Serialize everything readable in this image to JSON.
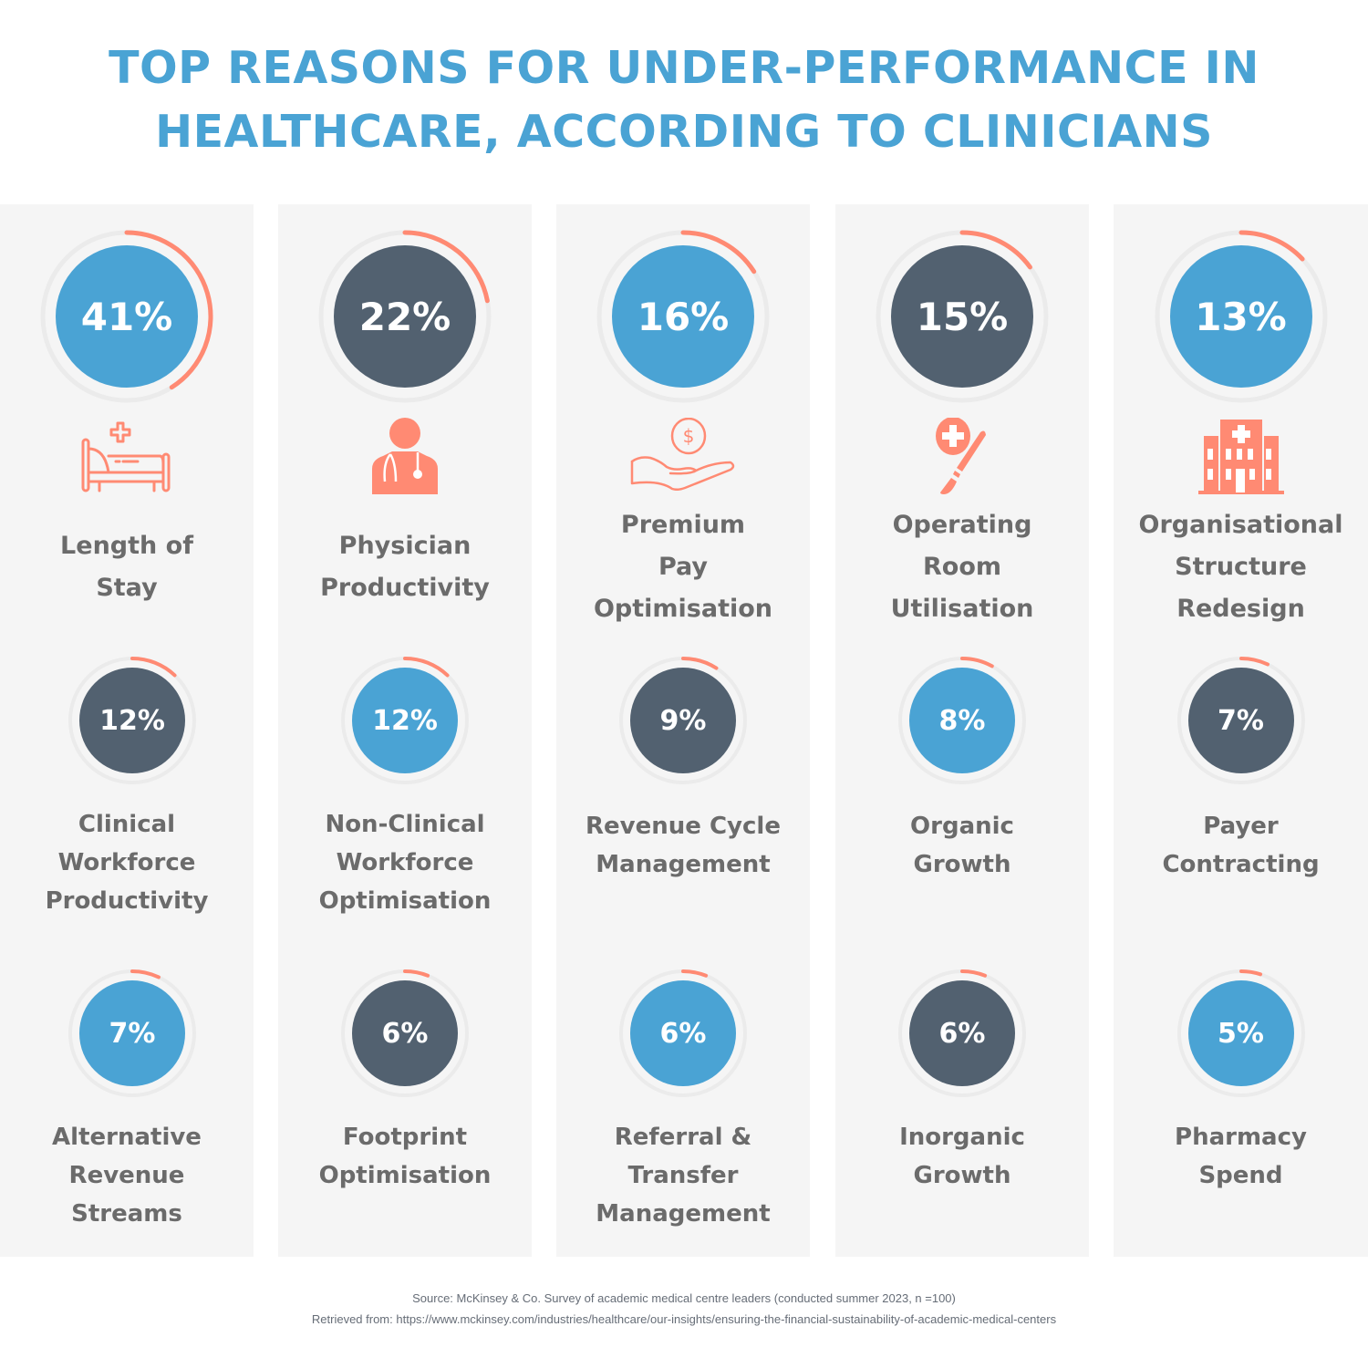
{
  "title": {
    "line1": "TOP REASONS FOR UNDER-PERFORMANCE IN",
    "line2": "HEALTHCARE, ACCORDING TO CLINICIANS"
  },
  "colors": {
    "blue": "#4aa3d4",
    "dark": "#526170",
    "accent": "#ff8a73",
    "track": "#ebebeb",
    "panel": "#f5f5f5",
    "label": "#6b6b6b"
  },
  "chart_data": {
    "type": "table",
    "title": "TOP REASONS FOR UNDER-PERFORMANCE IN HEALTHCARE, ACCORDING TO CLINICIANS",
    "unit": "%",
    "items": [
      {
        "rank": 1,
        "name": "Length of Stay",
        "lines": [
          "Length of",
          "Stay"
        ],
        "value": 41,
        "label": "41%",
        "fill": "blue",
        "icon": "hospital-bed-icon"
      },
      {
        "rank": 2,
        "name": "Physician Productivity",
        "lines": [
          "Physician",
          "Productivity"
        ],
        "value": 22,
        "label": "22%",
        "fill": "dark",
        "icon": "doctor-icon"
      },
      {
        "rank": 3,
        "name": "Premium Pay Optimisation",
        "lines": [
          "Premium",
          "Pay",
          "Optimisation"
        ],
        "value": 16,
        "label": "16%",
        "fill": "blue",
        "icon": "hand-coin-icon"
      },
      {
        "rank": 4,
        "name": "Operating Room Utilisation",
        "lines": [
          "Operating",
          "Room",
          "Utilisation"
        ],
        "value": 15,
        "label": "15%",
        "fill": "dark",
        "icon": "scalpel-icon"
      },
      {
        "rank": 5,
        "name": "Organisational Structure Redesign",
        "lines": [
          "Organisational",
          "Structure",
          "Redesign"
        ],
        "value": 13,
        "label": "13%",
        "fill": "blue",
        "icon": "hospital-building-icon"
      },
      {
        "rank": 6,
        "name": "Clinical Workforce Productivity",
        "lines": [
          "Clinical",
          "Workforce",
          "Productivity"
        ],
        "value": 12,
        "label": "12%",
        "fill": "dark"
      },
      {
        "rank": 7,
        "name": "Non-Clinical Workforce Optimisation",
        "lines": [
          "Non-Clinical",
          "Workforce",
          "Optimisation"
        ],
        "value": 12,
        "label": "12%",
        "fill": "blue"
      },
      {
        "rank": 8,
        "name": "Revenue Cycle Management",
        "lines": [
          "Revenue Cycle",
          "Management"
        ],
        "value": 9,
        "label": "9%",
        "fill": "dark"
      },
      {
        "rank": 9,
        "name": "Organic Growth",
        "lines": [
          "Organic",
          "Growth"
        ],
        "value": 8,
        "label": "8%",
        "fill": "blue"
      },
      {
        "rank": 10,
        "name": "Payer Contracting",
        "lines": [
          "Payer",
          "Contracting"
        ],
        "value": 7,
        "label": "7%",
        "fill": "dark"
      },
      {
        "rank": 11,
        "name": "Alternative Revenue Streams",
        "lines": [
          "Alternative",
          "Revenue",
          "Streams"
        ],
        "value": 7,
        "label": "7%",
        "fill": "blue"
      },
      {
        "rank": 12,
        "name": "Footprint Optimisation",
        "lines": [
          "Footprint",
          "Optimisation"
        ],
        "value": 6,
        "label": "6%",
        "fill": "dark"
      },
      {
        "rank": 13,
        "name": "Referral & Transfer Management",
        "lines": [
          "Referral &",
          "Transfer",
          "Management"
        ],
        "value": 6,
        "label": "6%",
        "fill": "blue"
      },
      {
        "rank": 14,
        "name": "Inorganic Growth",
        "lines": [
          "Inorganic",
          "Growth"
        ],
        "value": 6,
        "label": "6%",
        "fill": "dark"
      },
      {
        "rank": 15,
        "name": "Pharmacy Spend",
        "lines": [
          "Pharmacy",
          "Spend"
        ],
        "value": 5,
        "label": "5%",
        "fill": "blue"
      }
    ]
  },
  "footer": {
    "source": "Source: McKinsey & Co. Survey of academic medical centre leaders (conducted summer 2023, n =100)",
    "retrieved": "Retrieved from: https://www.mckinsey.com/industries/healthcare/our-insights/ensuring-the-financial-sustainability-of-academic-medical-centers"
  }
}
